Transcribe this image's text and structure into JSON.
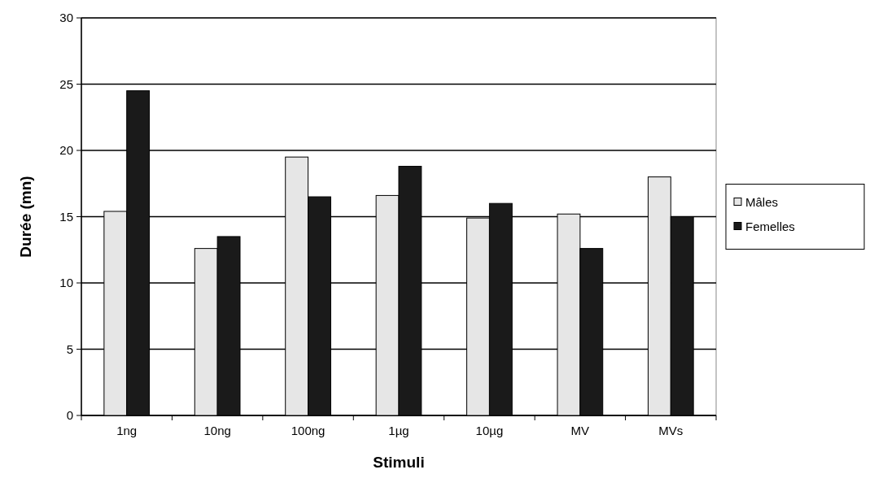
{
  "chart_data": {
    "type": "bar",
    "xlabel": "Stimuli",
    "ylabel": "Durée (mn)",
    "categories": [
      "1ng",
      "10ng",
      "100ng",
      "1µg",
      "10µg",
      "MV",
      "MVs"
    ],
    "series": [
      {
        "name": "Mâles",
        "color": "#e6e6e6",
        "values": [
          15.4,
          12.6,
          19.5,
          16.6,
          14.9,
          15.2,
          18.0
        ]
      },
      {
        "name": "Femelles",
        "color": "#1a1a1a",
        "values": [
          24.5,
          13.5,
          16.5,
          18.8,
          16.0,
          12.6,
          15.0
        ]
      }
    ],
    "ylim": [
      0,
      30
    ],
    "yticks": [
      0,
      5,
      10,
      15,
      20,
      25,
      30
    ],
    "grid": "y",
    "legend": "right"
  }
}
